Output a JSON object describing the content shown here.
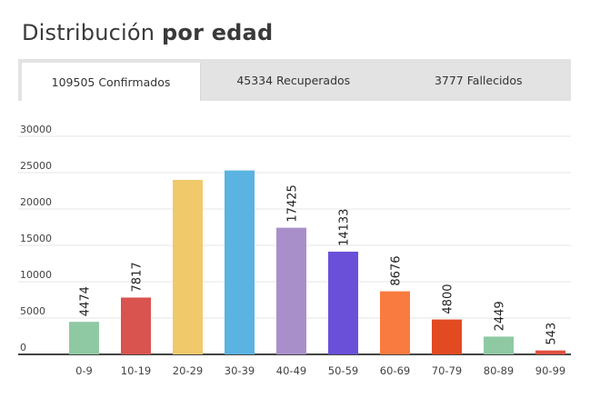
{
  "title": {
    "regular": "Distribución ",
    "bold": "por edad"
  },
  "tabs": [
    {
      "label": "109505 Confirmados",
      "active": true
    },
    {
      "label": "45334 Recuperados",
      "active": false
    },
    {
      "label": "3777 Fallecidos",
      "active": false
    }
  ],
  "chart_data": {
    "type": "bar",
    "categories": [
      "0-9",
      "10-19",
      "20-29",
      "30-39",
      "40-49",
      "50-59",
      "60-69",
      "70-79",
      "80-89",
      "90-99"
    ],
    "values": [
      4474,
      7817,
      24000,
      25300,
      17425,
      14133,
      8676,
      4800,
      2449,
      543
    ],
    "data_labels": [
      "4474",
      "7817",
      "",
      "",
      "17425",
      "14133",
      "8676",
      "4800",
      "2449",
      "543"
    ],
    "colors": [
      "#8fc9a3",
      "#d9534f",
      "#f0c96a",
      "#5ab3e0",
      "#a98fc9",
      "#6a4fd9",
      "#f97b3f",
      "#e24a22",
      "#8fc9a3",
      "#e05040"
    ],
    "yticks": [
      "0",
      "5000",
      "10000",
      "15000",
      "20000",
      "25000",
      "30000"
    ],
    "ylim": [
      0,
      30000
    ],
    "grid": true
  }
}
